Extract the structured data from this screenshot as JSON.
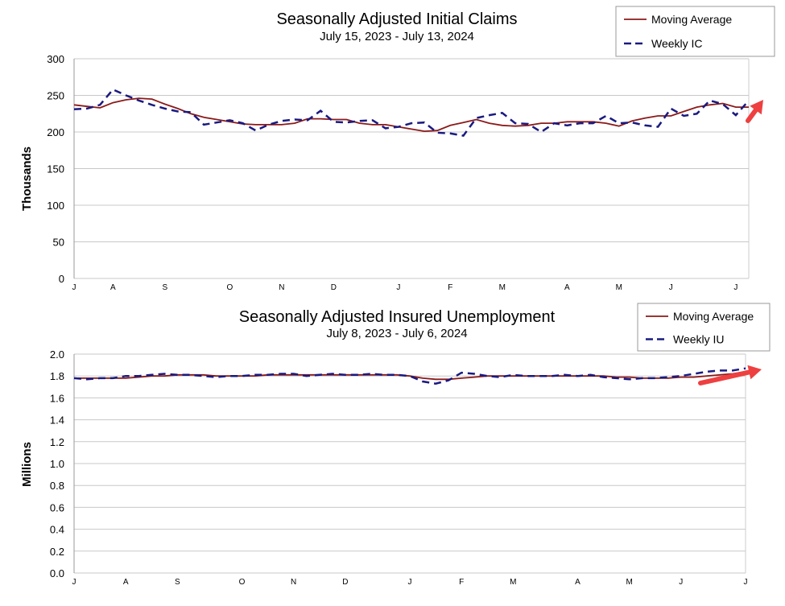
{
  "chart_data": [
    {
      "type": "line",
      "title": "Seasonally Adjusted Initial Claims",
      "subtitle": "July 15, 2023 - July 13, 2024",
      "ylabel": "Thousands",
      "ylim": [
        0,
        300
      ],
      "yticks": [
        "0",
        "50",
        "100",
        "150",
        "200",
        "250",
        "300"
      ],
      "xticks": [
        {
          "label": "J",
          "week": 0
        },
        {
          "label": "A",
          "week": 3
        },
        {
          "label": "S",
          "week": 7
        },
        {
          "label": "O",
          "week": 12
        },
        {
          "label": "N",
          "week": 16
        },
        {
          "label": "D",
          "week": 20
        },
        {
          "label": "J",
          "week": 25
        },
        {
          "label": "F",
          "week": 29
        },
        {
          "label": "M",
          "week": 33
        },
        {
          "label": "A",
          "week": 38
        },
        {
          "label": "M",
          "week": 42
        },
        {
          "label": "J",
          "week": 46
        },
        {
          "label": "J",
          "week": 51
        }
      ],
      "grid": true,
      "legend_position": "top-right",
      "annotation": "red upward arrow at latest value",
      "series": [
        {
          "name": "Moving Average",
          "color": "#8b1a1a",
          "style": "solid",
          "values": [
            237,
            235,
            233,
            240,
            244,
            246,
            245,
            238,
            232,
            225,
            220,
            217,
            214,
            211,
            210,
            210,
            210,
            212,
            218,
            218,
            217,
            217,
            212,
            210,
            210,
            207,
            204,
            201,
            202,
            209,
            213,
            217,
            212,
            209,
            208,
            209,
            212,
            212,
            214,
            214,
            214,
            212,
            208,
            215,
            219,
            222,
            222,
            228,
            234,
            237,
            239,
            234,
            234
          ]
        },
        {
          "name": "Weekly IC",
          "color": "#1a1a80",
          "style": "dashed",
          "values": [
            231,
            232,
            237,
            258,
            250,
            243,
            237,
            232,
            228,
            227,
            210,
            213,
            216,
            212,
            202,
            210,
            215,
            217,
            216,
            229,
            214,
            213,
            215,
            216,
            205,
            207,
            212,
            213,
            199,
            198,
            195,
            219,
            223,
            226,
            212,
            211,
            200,
            212,
            209,
            212,
            212,
            222,
            212,
            213,
            209,
            207,
            232,
            222,
            225,
            243,
            238,
            223,
            243
          ]
        }
      ]
    },
    {
      "type": "line",
      "title": "Seasonally Adjusted Insured Unemployment",
      "subtitle": "July 8, 2023 - July 6, 2024",
      "ylabel": "Millions",
      "ylim": [
        0,
        2.0
      ],
      "yticks": [
        "0.0",
        "0.2",
        "0.4",
        "0.6",
        "0.8",
        "1.0",
        "1.2",
        "1.4",
        "1.6",
        "1.8",
        "2.0"
      ],
      "xticks": [
        {
          "label": "J",
          "week": 0
        },
        {
          "label": "A",
          "week": 4
        },
        {
          "label": "S",
          "week": 8
        },
        {
          "label": "O",
          "week": 13
        },
        {
          "label": "N",
          "week": 17
        },
        {
          "label": "D",
          "week": 21
        },
        {
          "label": "J",
          "week": 26
        },
        {
          "label": "F",
          "week": 30
        },
        {
          "label": "M",
          "week": 34
        },
        {
          "label": "A",
          "week": 39
        },
        {
          "label": "M",
          "week": 43
        },
        {
          "label": "J",
          "week": 47
        },
        {
          "label": "J",
          "week": 52
        }
      ],
      "grid": true,
      "legend_position": "top-right",
      "annotation": "red upward arrow at latest value",
      "series": [
        {
          "name": "Moving Average",
          "color": "#8b1a1a",
          "style": "solid",
          "values": [
            1.78,
            1.78,
            1.78,
            1.78,
            1.78,
            1.79,
            1.8,
            1.8,
            1.81,
            1.81,
            1.81,
            1.8,
            1.8,
            1.8,
            1.8,
            1.81,
            1.81,
            1.81,
            1.81,
            1.81,
            1.81,
            1.81,
            1.81,
            1.81,
            1.81,
            1.81,
            1.8,
            1.78,
            1.77,
            1.77,
            1.78,
            1.79,
            1.8,
            1.8,
            1.8,
            1.8,
            1.8,
            1.8,
            1.8,
            1.8,
            1.8,
            1.8,
            1.79,
            1.79,
            1.78,
            1.78,
            1.78,
            1.79,
            1.79,
            1.8,
            1.81,
            1.82,
            1.84
          ]
        },
        {
          "name": "Weekly IU",
          "color": "#1a1a80",
          "style": "dashed",
          "values": [
            1.78,
            1.77,
            1.78,
            1.78,
            1.8,
            1.8,
            1.81,
            1.82,
            1.81,
            1.81,
            1.8,
            1.79,
            1.8,
            1.8,
            1.81,
            1.81,
            1.82,
            1.82,
            1.8,
            1.81,
            1.82,
            1.81,
            1.81,
            1.82,
            1.81,
            1.81,
            1.8,
            1.75,
            1.73,
            1.76,
            1.83,
            1.82,
            1.8,
            1.79,
            1.81,
            1.8,
            1.8,
            1.8,
            1.81,
            1.8,
            1.81,
            1.79,
            1.78,
            1.77,
            1.78,
            1.78,
            1.79,
            1.8,
            1.82,
            1.84,
            1.85,
            1.85,
            1.87
          ]
        }
      ]
    }
  ]
}
